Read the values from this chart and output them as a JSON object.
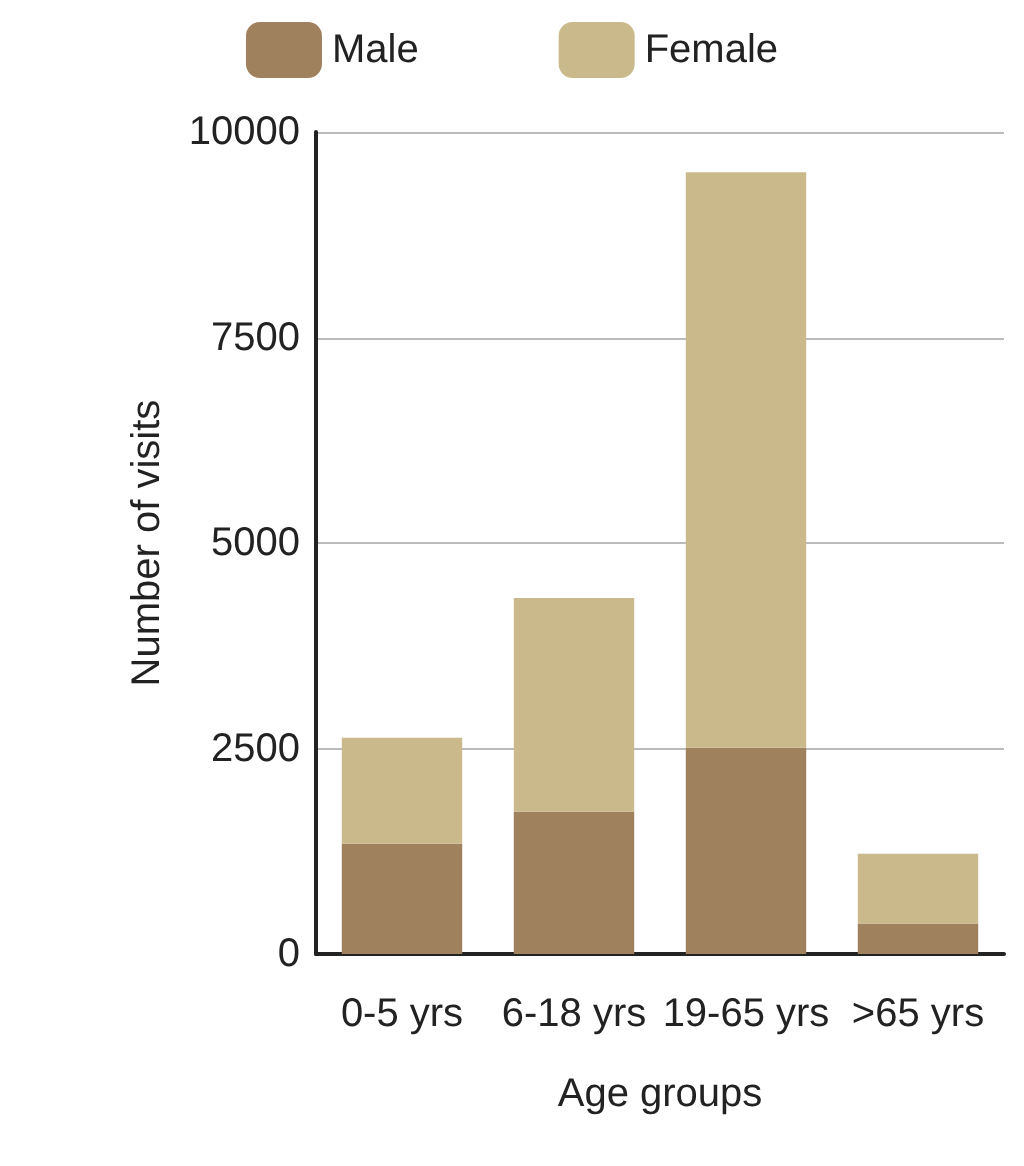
{
  "chart_data": {
    "type": "bar",
    "stacked": true,
    "xlabel": "Age groups",
    "ylabel": "Number of visits",
    "categories": [
      "0-5 yrs",
      "6-18 yrs",
      "19-65 yrs",
      ">65 yrs"
    ],
    "series": [
      {
        "name": "Male",
        "color": "#a0815e",
        "values": [
          1340,
          1730,
          2510,
          370
        ]
      },
      {
        "name": "Female",
        "color": "#c9b98b",
        "values": [
          1290,
          2600,
          7000,
          850
        ]
      }
    ],
    "ylim": [
      0,
      10000
    ],
    "yticks": [
      0,
      2500,
      5000,
      7500,
      10000
    ],
    "grid": "y",
    "legend": "top"
  }
}
